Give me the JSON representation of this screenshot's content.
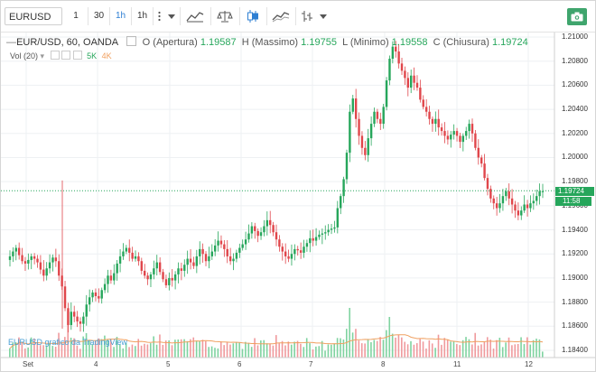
{
  "toolbar": {
    "symbol": "EURUSD",
    "intervals": [
      "1",
      "30",
      "1h",
      "1h"
    ],
    "active_interval": "1h",
    "icons": [
      "more-menu-icon",
      "dropdown-icon",
      "indicators-icon",
      "compare-icon",
      "candles-icon",
      "line-chart-icon",
      "bars-icon",
      "camera-icon"
    ]
  },
  "legend": {
    "title": "EUR/USD, 60, OANDA",
    "open_label": "O (Apertura)",
    "open_value": "1.19587",
    "high_label": "H (Massimo)",
    "high_value": "1.19755",
    "low_label": "L (Minimo)",
    "low_value": "1.19558",
    "close_label": "C (Chiusura)",
    "close_value": "1.19724",
    "vol_label": "Vol (20)",
    "vol_5k": "5K",
    "vol_4k": "4K"
  },
  "watermark": "EURUSD grafico da TradingView",
  "price_axis": [
    "1.21000",
    "1.20800",
    "1.20600",
    "1.20400",
    "1.20200",
    "1.20000",
    "1.19800",
    "1.19600",
    "1.19400",
    "1.19200",
    "1.19000",
    "1.18800",
    "1.18600",
    "1.18400"
  ],
  "current_price": "1.19724",
  "countdown": "11:58",
  "time_axis": [
    "Set",
    "4",
    "5",
    "6",
    "7",
    "8",
    "11",
    "12"
  ],
  "colors": {
    "up": "#26a65b",
    "down": "#e0464b",
    "ma": "#f0a060",
    "accent": "#2d7fd3",
    "camera": "#3fa56d"
  },
  "chart_data": {
    "type": "candlestick",
    "symbol": "EUR/USD",
    "interval": "60",
    "source": "OANDA",
    "x": [
      "Set",
      "4",
      "5",
      "6",
      "7",
      "8",
      "11",
      "12"
    ],
    "ylim": [
      1.184,
      1.21
    ],
    "last": {
      "open": 1.19587,
      "high": 1.19755,
      "low": 1.19558,
      "close": 1.19724
    },
    "close_path": [
      1.1918,
      1.1922,
      1.1925,
      1.1919,
      1.1914,
      1.1912,
      1.1915,
      1.1918,
      1.1916,
      1.1913,
      1.1907,
      1.1902,
      1.1908,
      1.1913,
      1.1917,
      1.1914,
      1.1902,
      1.1893,
      1.1875,
      1.1861,
      1.1872,
      1.1868,
      1.1864,
      1.1862,
      1.1868,
      1.1878,
      1.1884,
      1.1888,
      1.1885,
      1.1883,
      1.189,
      1.1895,
      1.1902,
      1.1898,
      1.1904,
      1.1912,
      1.1918,
      1.1922,
      1.1925,
      1.1921,
      1.1916,
      1.1918,
      1.1914,
      1.1906,
      1.1902,
      1.1899,
      1.1903,
      1.1908,
      1.1913,
      1.1905,
      1.1899,
      1.1894,
      1.19,
      1.1898,
      1.1903,
      1.1908,
      1.1906,
      1.1911,
      1.1916,
      1.1913,
      1.191,
      1.1918,
      1.1924,
      1.192,
      1.1914,
      1.1918,
      1.1922,
      1.1927,
      1.1931,
      1.1928,
      1.1924,
      1.1918,
      1.1914,
      1.1916,
      1.1921,
      1.1925,
      1.1928,
      1.1932,
      1.1937,
      1.1943,
      1.1939,
      1.1935,
      1.1938,
      1.1943,
      1.1948,
      1.1944,
      1.1938,
      1.1932,
      1.1926,
      1.1922,
      1.1918,
      1.1916,
      1.192,
      1.1924,
      1.1923,
      1.1921,
      1.1926,
      1.1929,
      1.1933,
      1.1931,
      1.1934,
      1.1936,
      1.1937,
      1.1938,
      1.194,
      1.1941,
      1.1942,
      1.1958,
      1.1968,
      1.1982,
      1.2004,
      1.2038,
      1.2049,
      1.2032,
      1.2018,
      1.2008,
      1.2002,
      1.2016,
      1.2028,
      1.2038,
      1.2032,
      1.2028,
      1.2042,
      1.2064,
      1.2082,
      1.2092,
      1.2088,
      1.2078,
      1.2072,
      1.2066,
      1.2058,
      1.2068,
      1.2062,
      1.2058,
      1.2048,
      1.2042,
      1.2038,
      1.2032,
      1.2028,
      1.2032,
      1.2025,
      1.2022,
      1.2018,
      1.2015,
      1.2019,
      1.2022,
      1.2018,
      1.2013,
      1.2018,
      1.2022,
      1.2028,
      1.202,
      1.2008,
      1.2,
      1.1995,
      1.1983,
      1.1974,
      1.1966,
      1.1962,
      1.1958,
      1.1962,
      1.1968,
      1.1972,
      1.1966,
      1.1961,
      1.1956,
      1.1952,
      1.1956,
      1.1961,
      1.1958,
      1.1962,
      1.1964,
      1.1968,
      1.1972,
      1.1972
    ]
  }
}
